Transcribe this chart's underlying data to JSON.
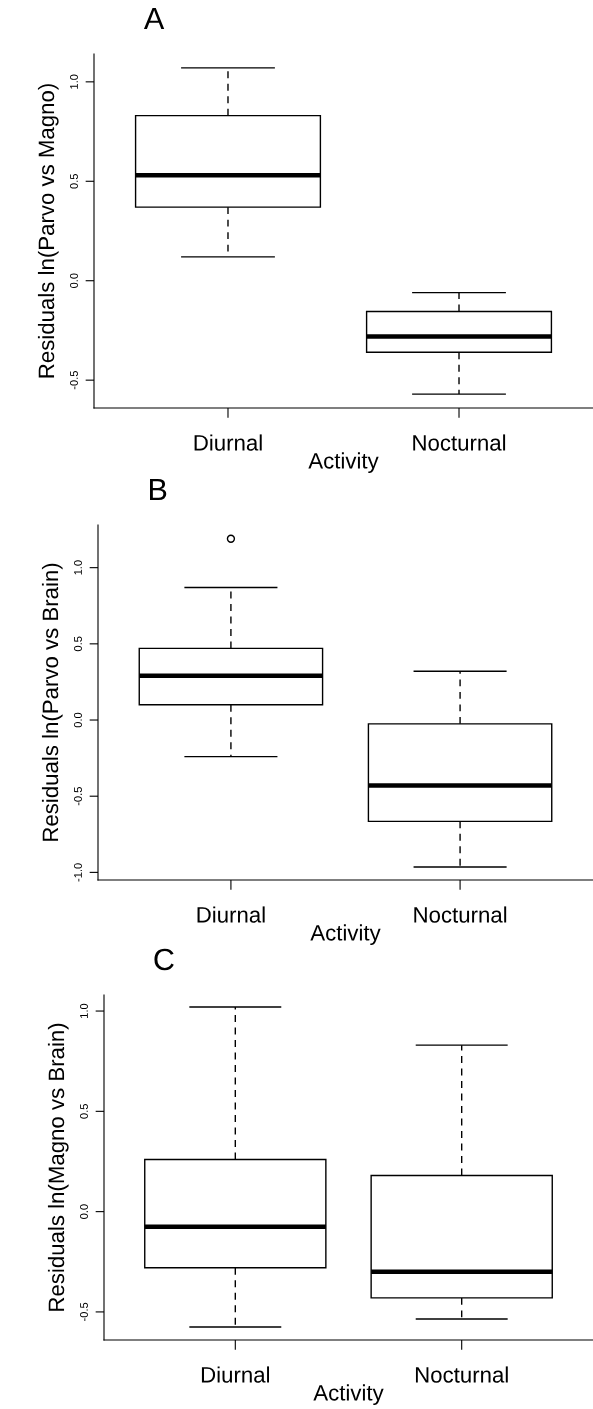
{
  "chart_data": [
    {
      "type": "box",
      "title": "A",
      "xlabel": "Activity",
      "ylabel": "Residuals ln(Parvo vs Magno)",
      "categories": [
        "Diurnal",
        "Nocturnal"
      ],
      "boxes": [
        {
          "low": 0.12,
          "q1": 0.37,
          "median": 0.53,
          "q3": 0.83,
          "high": 1.07
        },
        {
          "low": -0.57,
          "q1": -0.36,
          "median": -0.28,
          "q3": -0.155,
          "high": -0.06
        }
      ],
      "ylim": [
        -0.64,
        1.14
      ],
      "yticks": [
        {
          "value": -0.5,
          "label": "-0.5"
        },
        {
          "value": 0,
          "label": "0.0"
        },
        {
          "value": 0.5,
          "label": "0.5"
        },
        {
          "value": 1,
          "label": "1.0"
        }
      ],
      "grid": false,
      "legend": false
    },
    {
      "type": "box",
      "title": "B",
      "xlabel": "Activity",
      "ylabel": "Residuals ln(Parvo vs Brain)",
      "categories": [
        "Diurnal",
        "Nocturnal"
      ],
      "boxes": [
        {
          "low": -0.24,
          "q1": 0.1,
          "median": 0.29,
          "q3": 0.47,
          "high": 0.87,
          "outliers": [
            1.19
          ]
        },
        {
          "low": -0.965,
          "q1": -0.665,
          "median": -0.43,
          "q3": -0.025,
          "high": 0.32
        }
      ],
      "ylim": [
        -1.05,
        1.28
      ],
      "yticks": [
        {
          "value": -1,
          "label": "-1.0"
        },
        {
          "value": -0.5,
          "label": "-0.5"
        },
        {
          "value": 0,
          "label": "0.0"
        },
        {
          "value": 0.5,
          "label": "0.5"
        },
        {
          "value": 1,
          "label": "1.0"
        }
      ],
      "grid": false,
      "legend": false
    },
    {
      "type": "box",
      "title": "C",
      "xlabel": "Activity",
      "ylabel": "Residuals ln(Magno vs Brain)",
      "categories": [
        "Diurnal",
        "Nocturnal"
      ],
      "boxes": [
        {
          "low": -0.575,
          "q1": -0.28,
          "median": -0.075,
          "q3": 0.26,
          "high": 1.02
        },
        {
          "low": -0.535,
          "q1": -0.43,
          "median": -0.3,
          "q3": 0.18,
          "high": 0.83
        }
      ],
      "ylim": [
        -0.64,
        1.08
      ],
      "yticks": [
        {
          "value": -0.5,
          "label": "-0.5"
        },
        {
          "value": 0,
          "label": "0.0"
        },
        {
          "value": 0.5,
          "label": "0.5"
        },
        {
          "value": 1,
          "label": "1.0"
        }
      ],
      "grid": false,
      "legend": false
    }
  ]
}
